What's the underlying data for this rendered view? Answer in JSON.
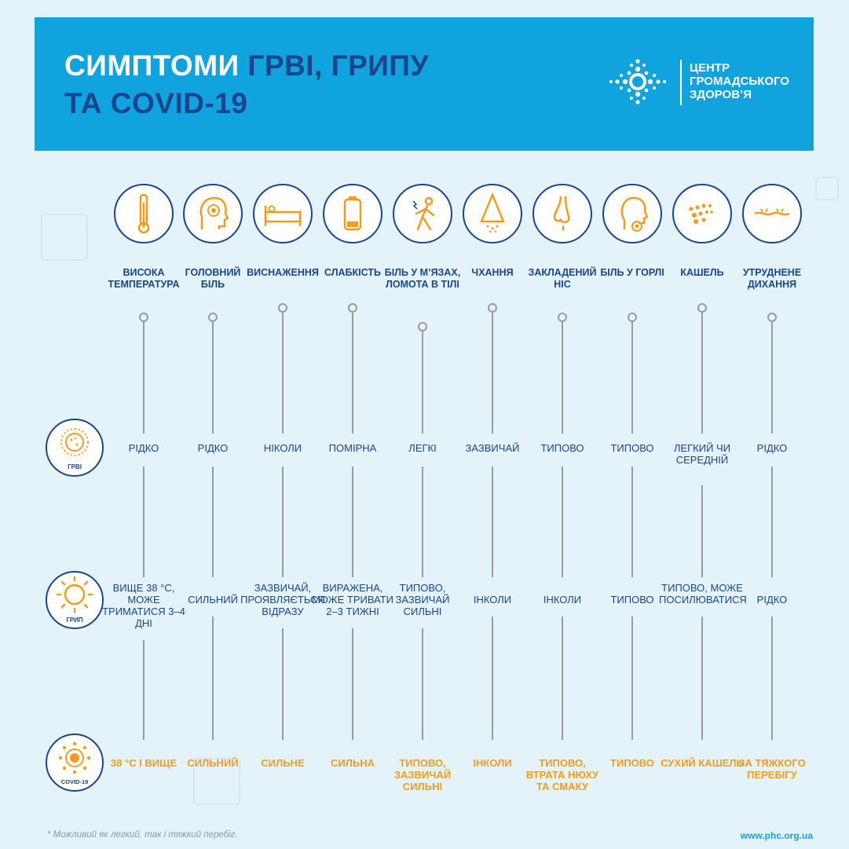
{
  "header": {
    "title_word1": "СИМПТОМИ",
    "title_rest1": " ГРВІ, ГРИПУ",
    "title_line2": "ТА COVID-19",
    "logo_line1": "ЦЕНТР",
    "logo_line2": "ГРОМАДСЬКОГО",
    "logo_line3": "ЗДОРОВ’Я"
  },
  "rows": {
    "grvi": "ГРВІ",
    "flu": "ГРИП",
    "covid": "COVID-19"
  },
  "columns": [
    {
      "icon": "thermometer-icon",
      "label": "ВИСОКА ТЕМПЕРАТУРА",
      "grvi": "РІДКО",
      "flu": "ВИЩЕ 38 °С, МОЖЕ ТРИМАТИСЯ 3–4 ДНІ",
      "covid": "38 °С І ВИЩЕ"
    },
    {
      "icon": "headache-icon",
      "label": "ГОЛОВНИЙ БІЛЬ",
      "grvi": "РІДКО",
      "flu": "СИЛЬНИЙ",
      "covid": "СИЛЬНИЙ"
    },
    {
      "icon": "bed-icon",
      "label": "ВИСНАЖЕННЯ",
      "grvi": "НІКОЛИ",
      "flu": "ЗАЗВИЧАЙ, ПРОЯВЛЯЄТЬСЯ ВІДРАЗУ",
      "covid": "СИЛЬНЕ"
    },
    {
      "icon": "battery-icon",
      "label": "СЛАБКІСТЬ",
      "grvi": "ПОМІРНА",
      "flu": "ВИРАЖЕНА, МОЖЕ ТРИВАТИ 2–3 ТИЖНІ",
      "covid": "СИЛЬНА"
    },
    {
      "icon": "body-pain-icon",
      "label": "БІЛЬ У М’ЯЗАХ, ЛОМОТА В ТІЛІ",
      "grvi": "ЛЕГКІ",
      "flu": "ТИПОВО, ЗАЗВИЧАЙ СИЛЬНІ",
      "covid": "ТИПОВО, ЗАЗВИЧАЙ СИЛЬНІ"
    },
    {
      "icon": "sneeze-icon",
      "label": "ЧХАННЯ",
      "grvi": "ЗАЗВИЧАЙ",
      "flu": "ІНКОЛИ",
      "covid": "ІНКОЛИ"
    },
    {
      "icon": "nose-icon",
      "label": "ЗАКЛАДЕНИЙ НІС",
      "grvi": "ТИПОВО",
      "flu": "ІНКОЛИ",
      "covid": "ТИПОВО, ВТРАТА НЮХУ ТА СМАКУ"
    },
    {
      "icon": "sore-throat-icon",
      "label": "БІЛЬ У ГОРЛІ",
      "grvi": "ТИПОВО",
      "flu": "ТИПОВО",
      "covid": "ТИПОВО"
    },
    {
      "icon": "cough-icon",
      "label": "КАШЕЛЬ",
      "grvi": "ЛЕГКИЙ ЧИ СЕРЕДНІЙ",
      "flu": "ТИПОВО, МОЖЕ ПОСИЛЮВАТИСЯ",
      "covid": "СУХИЙ КАШЕЛЬ"
    },
    {
      "icon": "breathing-icon",
      "label": "УТРУДНЕНЕ ДИХАННЯ",
      "grvi": "РІДКО",
      "flu": "РІДКО",
      "covid": "ЗА ТЯЖКОГО ПЕРЕБІГУ"
    }
  ],
  "footer": {
    "note": "* Можливий як легкий, так і тяжкий перебіг.",
    "url": "www.phc.org.ua"
  },
  "colors": {
    "banner": "#11a3dd",
    "navy": "#17468e",
    "orange": "#f29c1f",
    "background": "#e4f3f9"
  }
}
